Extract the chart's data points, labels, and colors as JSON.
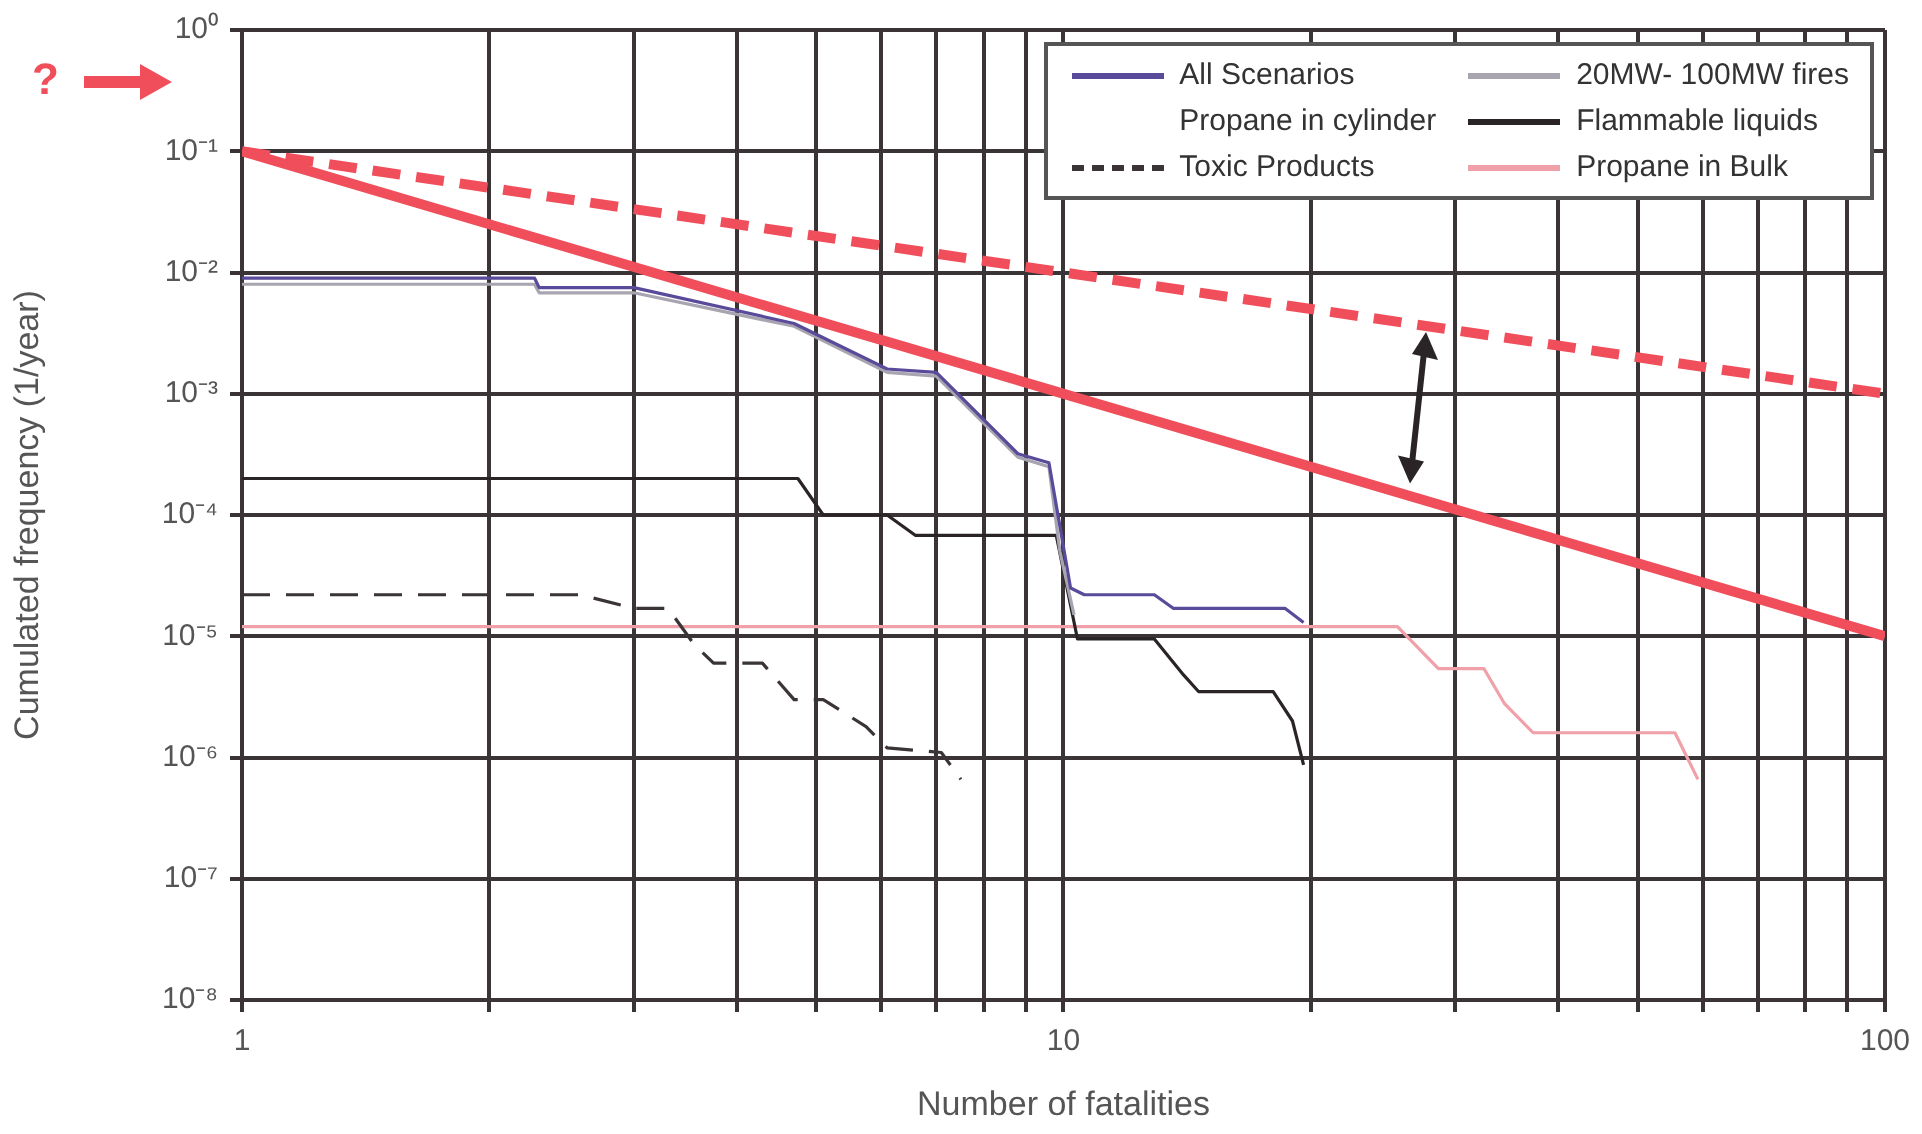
{
  "chart_data": {
    "type": "line",
    "xlabel": "Number of fatalities",
    "ylabel": "Cumulated frequency (1/year)",
    "log": "xy",
    "xlim": [
      1,
      100
    ],
    "ylim": [
      1e-08,
      1
    ],
    "xticks": [
      1,
      {
        "value": 2,
        "label": null
      },
      {
        "value": 3,
        "label": null
      },
      {
        "value": 4,
        "label": null
      },
      {
        "value": 5,
        "label": null
      },
      {
        "value": 6,
        "label": null
      },
      {
        "value": 7,
        "label": null
      },
      {
        "value": 8,
        "label": null
      },
      {
        "value": 9,
        "label": null
      },
      10,
      {
        "value": 20,
        "label": null
      },
      {
        "value": 30,
        "label": null
      },
      {
        "value": 40,
        "label": null
      },
      {
        "value": 50,
        "label": null
      },
      {
        "value": 60,
        "label": null
      },
      {
        "value": 70,
        "label": null
      },
      {
        "value": 80,
        "label": null
      },
      {
        "value": 90,
        "label": null
      },
      100
    ],
    "yticks": [
      {
        "value": 1e-08,
        "label": "10⁻⁸"
      },
      {
        "value": 1e-07,
        "label": "10⁻⁷"
      },
      {
        "value": 1e-06,
        "label": "10⁻⁶"
      },
      {
        "value": 1e-05,
        "label": "10⁻⁵"
      },
      {
        "value": 0.0001,
        "label": "10⁻⁴"
      },
      {
        "value": 0.001,
        "label": "10⁻³"
      },
      {
        "value": 0.01,
        "label": "10⁻²"
      },
      {
        "value": 0.1,
        "label": "10⁻¹"
      },
      {
        "value": 1,
        "label": "10⁰"
      }
    ],
    "grid": true,
    "legend": "top right",
    "series": [
      {
        "name": "All Scenarios",
        "color": "#5a4a9a",
        "x": [
          1,
          2.27,
          2.3,
          3.0,
          4.7,
          6.1,
          7.0,
          8.8,
          9.6,
          10.2,
          10.6,
          12.9,
          13.6,
          18.6,
          19.6
        ],
        "values": [
          0.009,
          0.009,
          0.0075,
          0.0075,
          0.0038,
          0.0016,
          0.0015,
          0.00032,
          0.00027,
          2.5e-05,
          2.2e-05,
          2.2e-05,
          1.7e-05,
          1.7e-05,
          1.3e-05
        ]
      },
      {
        "name": "20MW- 100MW fires",
        "color": "#a8a4b0",
        "x": [
          1,
          2.27,
          2.3,
          3.0,
          4.7,
          6.1,
          7.0,
          8.8,
          9.6,
          9.9,
          10.3
        ],
        "values": [
          0.008,
          0.008,
          0.0068,
          0.0068,
          0.0036,
          0.0015,
          0.0014,
          0.0003,
          0.00025,
          5e-05,
          1.5e-05
        ]
      },
      {
        "name": "Propane in cylinder"
      },
      {
        "name": "Flammable liquids",
        "color": "#2a2426",
        "x": [
          1,
          4.75,
          5.1,
          6.1,
          6.6,
          9.8,
          10.4,
          12.9,
          14.0,
          14.6,
          18.0,
          19.0,
          19.6
        ],
        "values": [
          0.0002,
          0.0002,
          0.0001,
          0.0001,
          6.8e-05,
          6.8e-05,
          9.5e-06,
          9.5e-06,
          4.8e-06,
          3.5e-06,
          3.5e-06,
          2e-06,
          8.7e-07
        ]
      },
      {
        "name": "Toxic Products",
        "color": "#3a3436",
        "line_style": "dashed",
        "x": [
          1,
          2.58,
          3.0,
          3.3,
          3.55,
          3.75,
          4.3,
          4.7,
          5.1,
          5.75,
          6.1,
          7.1,
          7.5
        ],
        "values": [
          2.2e-05,
          2.2e-05,
          1.7e-05,
          1.7e-05,
          8.6e-06,
          6e-06,
          6e-06,
          3e-06,
          3e-06,
          1.8e-06,
          1.2e-06,
          1.1e-06,
          6.6e-07
        ]
      },
      {
        "name": "Propane in Bulk",
        "color": "#f0a0a8",
        "x": [
          1,
          25.5,
          28.6,
          32.5,
          34.4,
          37.3,
          55.5,
          59.2
        ],
        "values": [
          1.2e-05,
          1.2e-05,
          5.4e-06,
          5.4e-06,
          2.8e-06,
          1.6e-06,
          1.6e-06,
          6.6e-07
        ]
      },
      {
        "color": "#f04e5a",
        "x": [
          1,
          100
        ],
        "values": [
          0.1,
          1e-05
        ]
      },
      {
        "color": "#f04e5a",
        "line_style": "dashed",
        "x": [
          1,
          100
        ],
        "values": [
          0.1,
          0.001
        ]
      }
    ],
    "annotations": [
      "?"
    ]
  }
}
